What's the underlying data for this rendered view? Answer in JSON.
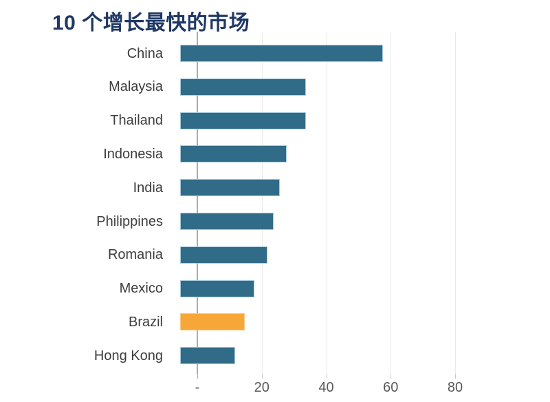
{
  "page": {
    "background": "#FFFFFF"
  },
  "title": {
    "text": "10 个增长最快的市场",
    "color": "#1F3864"
  },
  "chart_data": {
    "type": "bar",
    "orientation": "horizontal",
    "title": "10 个增长最快的市场",
    "categories": [
      "China",
      "Malaysia",
      "Thailand",
      "Indonesia",
      "India",
      "Philippines",
      "Romania",
      "Mexico",
      "Brazil",
      "Hong Kong"
    ],
    "values": [
      63,
      39,
      39,
      33,
      31,
      29,
      27,
      23,
      20,
      17
    ],
    "highlight_index": 8,
    "xlabel": "",
    "ylabel": "",
    "xlim": [
      0,
      100
    ],
    "x_ticks": [
      0,
      20,
      40,
      60,
      80
    ],
    "x_tick_labels": [
      "-",
      "20",
      "40",
      "60",
      "80"
    ],
    "grid": "vertical-gridlines",
    "legend": "none",
    "colors": {
      "bar_fill": "#306B87",
      "bar_border": "#A9CBE0",
      "highlight_fill": "#F6A738",
      "highlight_border": "#F8C987",
      "axis_line": "#ABABAB",
      "gridline": "#E9E9E9",
      "tick_mark": "#C9C9C9",
      "category_label": "#3D3D3D",
      "tick_label": "#595959"
    }
  }
}
